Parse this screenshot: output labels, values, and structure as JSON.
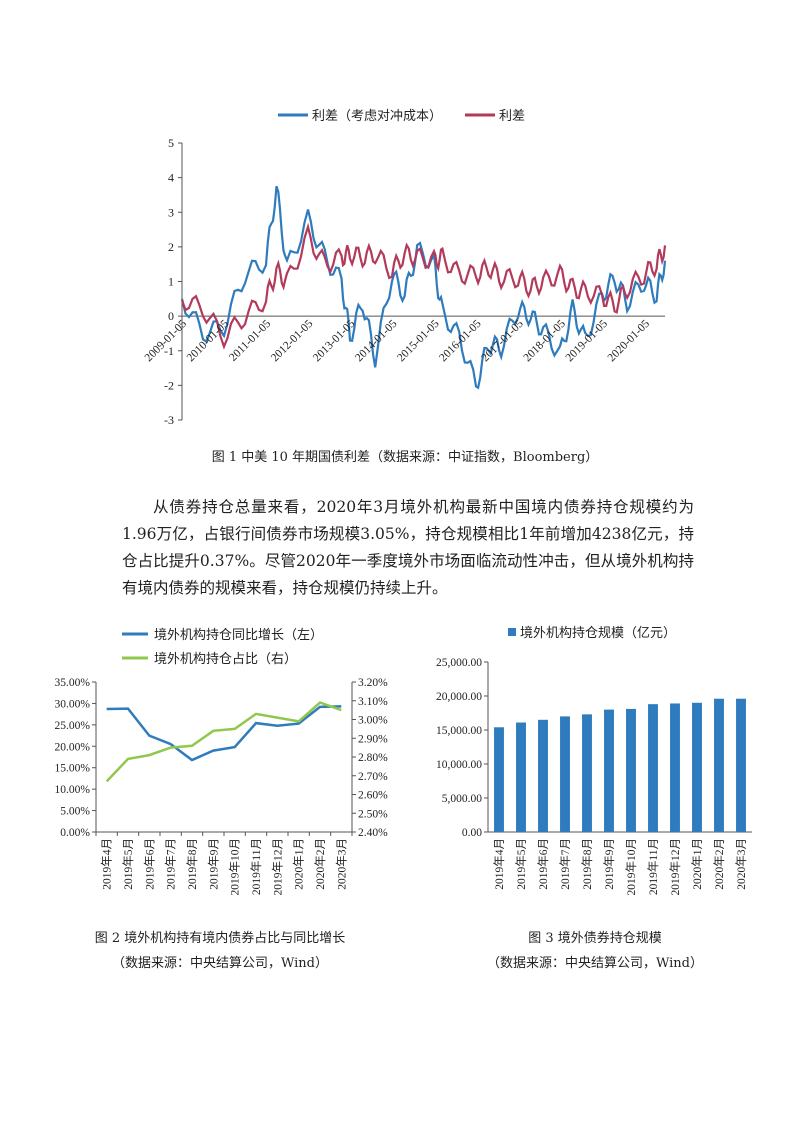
{
  "chart_data": [
    {
      "type": "line",
      "legend": [
        "利差（考虑对冲成本）",
        "利差"
      ],
      "colors": [
        "#2e7bbd",
        "#b23a5a"
      ],
      "xticks": [
        "2009-01-05",
        "2010-01-05",
        "2011-01-05",
        "2012-01-05",
        "2013-01-05",
        "2014-01-05",
        "2015-01-05",
        "2016-01-05",
        "2017-01-05",
        "2018-01-05",
        "2019-01-05",
        "2020-01-05"
      ],
      "ylim": [
        -3,
        5
      ],
      "yticks": [
        "5",
        "4",
        "3",
        "2",
        "1",
        "0",
        "-1",
        "-2",
        "-3"
      ],
      "x": [
        2009.0,
        2009.5,
        2010.0,
        2010.5,
        2011.0,
        2011.25,
        2011.5,
        2012.0,
        2012.4,
        2012.8,
        2013.0,
        2013.3,
        2013.6,
        2014.0,
        2014.3,
        2014.6,
        2015.0,
        2015.2,
        2015.6,
        2016.0,
        2016.3,
        2016.6,
        2017.0,
        2017.3,
        2017.6,
        2018.0,
        2018.3,
        2018.6,
        2019.0,
        2019.3,
        2019.6,
        2020.0,
        2020.3,
        2020.5
      ],
      "series": [
        {
          "name": "利差（考虑对冲成本）",
          "values": [
            0.5,
            -0.5,
            -0.3,
            1.2,
            1.6,
            3.7,
            1.4,
            2.8,
            1.7,
            1.0,
            -0.6,
            0.4,
            -1.2,
            1.2,
            0.6,
            1.9,
            1.5,
            0.1,
            -0.6,
            -2.0,
            -0.8,
            -0.9,
            0.2,
            0.0,
            -0.4,
            -1.1,
            0.2,
            -0.7,
            0.6,
            1.1,
            0.4,
            1.0,
            0.6,
            1.6
          ]
        },
        {
          "name": "利差",
          "values": [
            0.5,
            0.2,
            -0.6,
            0.0,
            0.5,
            1.3,
            1.0,
            2.3,
            1.5,
            1.7,
            1.8,
            1.7,
            1.8,
            1.3,
            1.8,
            1.7,
            1.6,
            1.7,
            1.2,
            1.2,
            1.4,
            1.1,
            1.1,
            0.8,
            1.0,
            1.2,
            0.8,
            0.7,
            0.6,
            0.3,
            0.8,
            1.2,
            1.5,
            2.0
          ]
        }
      ]
    },
    {
      "type": "line",
      "categories": [
        "2019年4月",
        "2019年5月",
        "2019年6月",
        "2019年7月",
        "2019年8月",
        "2019年9月",
        "2019年10月",
        "2019年11月",
        "2019年12月",
        "2020年1月",
        "2020年2月",
        "2020年3月"
      ],
      "series": [
        {
          "name": "境外机构持仓同比增长（左）",
          "axis": "left",
          "color": "#2e7bbd",
          "values": [
            28.7,
            28.8,
            22.5,
            20.5,
            16.8,
            19.0,
            19.8,
            25.4,
            24.8,
            25.3,
            29.2,
            29.3
          ]
        },
        {
          "name": "境外机构持仓占比（右）",
          "axis": "right",
          "color": "#92c74e",
          "values": [
            2.67,
            2.79,
            2.81,
            2.85,
            2.86,
            2.94,
            2.95,
            3.03,
            3.01,
            2.99,
            3.09,
            3.05
          ]
        }
      ],
      "ylim_left": [
        0,
        35
      ],
      "ylim_right": [
        2.4,
        3.2
      ],
      "yticks_left": [
        "35.00%",
        "30.00%",
        "25.00%",
        "20.00%",
        "15.00%",
        "10.00%",
        "5.00%",
        "0.00%"
      ],
      "yticks_right": [
        "3.20%",
        "3.10%",
        "3.00%",
        "2.90%",
        "2.80%",
        "2.70%",
        "2.60%",
        "2.50%",
        "2.40%"
      ]
    },
    {
      "type": "bar",
      "legend": [
        "境外机构持仓规模（亿元）"
      ],
      "color": "#2e7bbd",
      "categories": [
        "2019年4月",
        "2019年5月",
        "2019年6月",
        "2019年7月",
        "2019年8月",
        "2019年9月",
        "2019年10月",
        "2019年11月",
        "2019年12月",
        "2020年1月",
        "2020年2月",
        "2020年3月"
      ],
      "values": [
        15400,
        16100,
        16500,
        17000,
        17300,
        18000,
        18100,
        18800,
        18900,
        19000,
        19600,
        19600
      ],
      "ylim": [
        0,
        25000
      ],
      "yticks": [
        "25,000.00",
        "20,000.00",
        "15,000.00",
        "10,000.00",
        "5,000.00",
        "0.00"
      ]
    }
  ],
  "captions": {
    "fig1": "图 1 中美 10 年期国债利差（数据来源：中证指数，Bloomberg）",
    "fig2": "图 2 境外机构持有境内债券占比与同比增长",
    "fig2_source": "（数据来源：中央结算公司，Wind）",
    "fig3": "图 3 境外债券持仓规模",
    "fig3_source": "（数据来源：中央结算公司，Wind）"
  },
  "paragraph": "从债券持仓总量来看，2020年3月境外机构最新中国境内债券持仓规模约为1.96万亿，占银行间债券市场规模3.05%，持仓规模相比1年前增加4238亿元，持仓占比提升0.37%。尽管2020年一季度境外市场面临流动性冲击，但从境外机构持有境内债券的规模来看，持仓规模仍持续上升。"
}
